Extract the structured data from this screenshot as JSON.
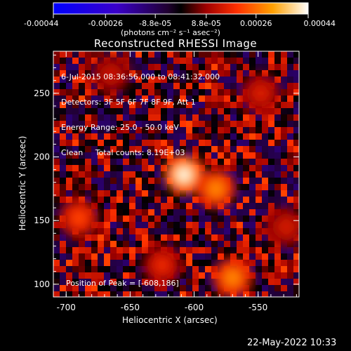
{
  "colorbar": {
    "ticks": [
      "-0.00044",
      "-0.00026",
      "-8.8e-05",
      "8.8e-05",
      "0.00026",
      "0.00044"
    ],
    "units": "(photons cm⁻² s⁻¹ asec⁻²)"
  },
  "title": "Reconstructed RHESSI Image",
  "info": {
    "line1": "6-Jul-2015 08:36:56.000 to 08:41:32.000",
    "line2": "Detectors: 3F 5F 6F 7F 8F 9F, Att 1",
    "line3": "Energy Range: 25.0 - 50.0 keV",
    "line4": "Clean     Total counts: 8.19E+03",
    "peak": "Position of Peak = [-608,186]"
  },
  "timestamp": "22-May-2022 10:33",
  "chart_data": {
    "type": "heatmap",
    "title": "Reconstructed RHESSI Image",
    "xlabel": "Heliocentric X (arcsec)",
    "ylabel": "Heliocentric Y (arcsec)",
    "xlim": [
      -710,
      -518
    ],
    "ylim": [
      90,
      283
    ],
    "xticks": [
      -700,
      -650,
      -600,
      -550
    ],
    "yticks": [
      100,
      150,
      200,
      250
    ],
    "colorbar_range": [
      -0.00044,
      0.00044
    ],
    "colorbar_ticks": [
      -0.00044,
      -0.00026,
      -8.8e-05,
      8.8e-05,
      0.00026,
      0.00044
    ],
    "peak_position": [
      -608,
      186
    ],
    "sources": [
      {
        "x": -608,
        "y": 186,
        "value": 0.00044
      },
      {
        "x": -583,
        "y": 175,
        "value": 0.0003
      },
      {
        "x": -570,
        "y": 105,
        "value": 0.0003
      },
      {
        "x": -690,
        "y": 152,
        "value": 0.00022
      },
      {
        "x": -625,
        "y": 115,
        "value": 0.00018
      },
      {
        "x": -548,
        "y": 250,
        "value": 0.00016
      },
      {
        "x": -528,
        "y": 145,
        "value": 0.00015
      },
      {
        "x": -665,
        "y": 265,
        "value": 0.00014
      }
    ]
  },
  "colors": {
    "background": "#000000",
    "axis": "#ffffff",
    "text": "#ffffff"
  }
}
